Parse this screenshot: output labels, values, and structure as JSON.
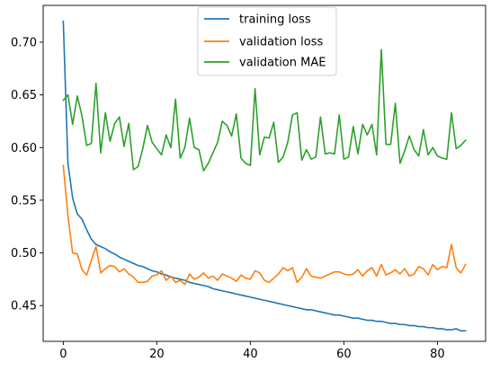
{
  "chart_data": {
    "type": "line",
    "title": "",
    "xlabel": "",
    "ylabel": "",
    "xlim": [
      -4.3,
      90.3
    ],
    "ylim": [
      0.416,
      0.735
    ],
    "xticks": [
      0,
      20,
      40,
      60,
      80
    ],
    "xtick_labels": [
      "0",
      "20",
      "40",
      "60",
      "80"
    ],
    "yticks": [
      0.45,
      0.5,
      0.55,
      0.6,
      0.65,
      0.7
    ],
    "ytick_labels": [
      "0.45",
      "0.50",
      "0.55",
      "0.60",
      "0.65",
      "0.70"
    ],
    "grid": false,
    "legend_position": "top-center",
    "series": [
      {
        "name": "training loss",
        "color": "#1f77b4",
        "values": [
          0.72,
          0.585,
          0.552,
          0.537,
          0.532,
          0.522,
          0.513,
          0.508,
          0.506,
          0.504,
          0.501,
          0.499,
          0.496,
          0.494,
          0.492,
          0.49,
          0.488,
          0.487,
          0.485,
          0.483,
          0.482,
          0.48,
          0.479,
          0.477,
          0.476,
          0.475,
          0.474,
          0.472,
          0.471,
          0.47,
          0.469,
          0.468,
          0.466,
          0.465,
          0.464,
          0.463,
          0.462,
          0.461,
          0.46,
          0.459,
          0.458,
          0.457,
          0.456,
          0.455,
          0.454,
          0.453,
          0.452,
          0.451,
          0.45,
          0.449,
          0.448,
          0.447,
          0.446,
          0.446,
          0.445,
          0.444,
          0.443,
          0.442,
          0.441,
          0.441,
          0.44,
          0.439,
          0.438,
          0.438,
          0.437,
          0.436,
          0.436,
          0.435,
          0.435,
          0.434,
          0.433,
          0.433,
          0.432,
          0.432,
          0.431,
          0.431,
          0.43,
          0.43,
          0.429,
          0.429,
          0.428,
          0.428,
          0.427,
          0.427,
          0.428,
          0.426,
          0.426
        ]
      },
      {
        "name": "validation loss",
        "color": "#ff7f0e",
        "values": [
          0.583,
          0.535,
          0.5,
          0.499,
          0.484,
          0.479,
          0.493,
          0.506,
          0.481,
          0.485,
          0.488,
          0.487,
          0.482,
          0.485,
          0.48,
          0.477,
          0.472,
          0.472,
          0.473,
          0.478,
          0.479,
          0.483,
          0.474,
          0.478,
          0.472,
          0.474,
          0.47,
          0.48,
          0.475,
          0.477,
          0.481,
          0.476,
          0.478,
          0.474,
          0.48,
          0.478,
          0.476,
          0.473,
          0.479,
          0.476,
          0.475,
          0.483,
          0.481,
          0.474,
          0.472,
          0.476,
          0.48,
          0.486,
          0.483,
          0.486,
          0.472,
          0.477,
          0.485,
          0.478,
          0.477,
          0.476,
          0.478,
          0.48,
          0.482,
          0.482,
          0.48,
          0.479,
          0.48,
          0.484,
          0.478,
          0.483,
          0.486,
          0.478,
          0.489,
          0.479,
          0.481,
          0.484,
          0.48,
          0.485,
          0.478,
          0.48,
          0.487,
          0.485,
          0.479,
          0.489,
          0.484,
          0.487,
          0.486,
          0.508,
          0.486,
          0.481,
          0.489
        ]
      },
      {
        "name": "validation MAE",
        "color": "#2ca02c",
        "values": [
          0.645,
          0.65,
          0.622,
          0.649,
          0.63,
          0.602,
          0.604,
          0.661,
          0.595,
          0.633,
          0.606,
          0.623,
          0.629,
          0.601,
          0.623,
          0.579,
          0.582,
          0.599,
          0.621,
          0.605,
          0.599,
          0.593,
          0.612,
          0.6,
          0.646,
          0.59,
          0.6,
          0.628,
          0.6,
          0.598,
          0.578,
          0.585,
          0.595,
          0.605,
          0.625,
          0.621,
          0.611,
          0.632,
          0.59,
          0.585,
          0.583,
          0.656,
          0.593,
          0.61,
          0.609,
          0.624,
          0.586,
          0.591,
          0.605,
          0.631,
          0.633,
          0.588,
          0.598,
          0.589,
          0.591,
          0.629,
          0.594,
          0.595,
          0.594,
          0.631,
          0.589,
          0.591,
          0.62,
          0.594,
          0.622,
          0.612,
          0.622,
          0.593,
          0.693,
          0.603,
          0.603,
          0.642,
          0.585,
          0.597,
          0.611,
          0.598,
          0.592,
          0.617,
          0.593,
          0.6,
          0.592,
          0.59,
          0.589,
          0.633,
          0.599,
          0.602,
          0.607
        ]
      }
    ]
  }
}
